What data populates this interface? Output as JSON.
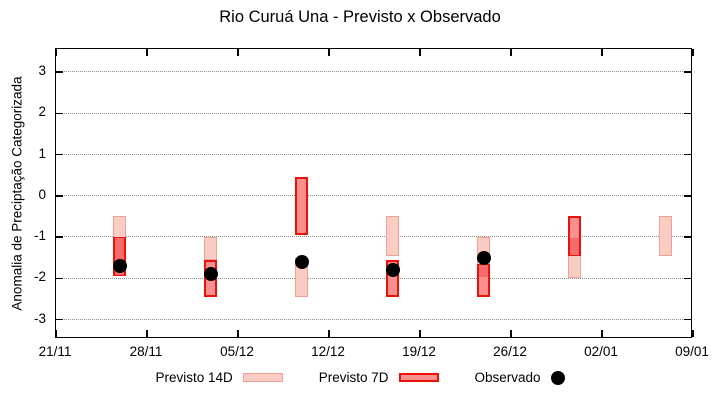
{
  "title": "Rio Curuá Una - Previsto x Observado",
  "y_axis": {
    "label": "Anomalia de Preciptação Categorizada",
    "ticks": [
      3,
      2,
      1,
      0,
      -1,
      -2,
      -3
    ]
  },
  "x_axis": {
    "ticks": [
      "21/11",
      "28/11",
      "05/12",
      "12/12",
      "19/12",
      "26/12",
      "02/01",
      "09/01"
    ]
  },
  "legend": {
    "previsto14_label": "Previsto 14D",
    "previsto7_label": "Previsto 7D",
    "observado_label": "Observado"
  },
  "colors": {
    "previsto_14d_fill": "#f9cdc4",
    "previsto_14d_border": "#f2a097",
    "previsto_7d_fill": "#f98f8f",
    "previsto_7d_border": "#e8140a",
    "overlap_fill": "#f56b6b",
    "observado": "#000000",
    "grid": "#909090",
    "axis": "#000000"
  },
  "chart_data": {
    "type": "range-bar",
    "title": "Rio Curuá Una - Previsto x Observado",
    "ylabel": "Anomalia de Preciptação Categorizada",
    "ylim": [
      -3.47,
      3.56
    ],
    "x_axis_weeks": [
      "21/11",
      "28/11",
      "05/12",
      "12/12",
      "19/12",
      "26/12",
      "02/01",
      "09/01"
    ],
    "grid": "horizontal-dotted",
    "legend_position": "bottom-center",
    "series_names": [
      "Previsto 14D",
      "Previsto 7D",
      "Observado"
    ],
    "bars": [
      {
        "x_weeks": 0.7,
        "previsto_14d": [
          -0.5,
          -1.95
        ],
        "previsto_7d": [
          -1.0,
          -1.95
        ],
        "observado": -1.7
      },
      {
        "x_weeks": 1.7,
        "previsto_14d": [
          -1.0,
          -1.55
        ],
        "previsto_7d": [
          -1.55,
          -2.45
        ],
        "observado": -1.9
      },
      {
        "x_weeks": 2.7,
        "previsto_14d": [
          -1.5,
          -2.45
        ],
        "previsto_7d": [
          0.45,
          -0.95
        ],
        "observado": -1.6
      },
      {
        "x_weeks": 3.7,
        "previsto_14d": [
          -0.5,
          -1.45
        ],
        "previsto_7d": [
          -1.55,
          -2.45
        ],
        "observado": -1.8
      },
      {
        "x_weeks": 4.7,
        "previsto_14d": [
          -1.0,
          -2.0
        ],
        "previsto_7d": [
          -1.65,
          -2.45
        ],
        "observado": -1.5
      },
      {
        "x_weeks": 5.7,
        "previsto_14d": [
          -1.0,
          -2.0
        ],
        "previsto_7d": [
          -0.5,
          -1.45
        ],
        "observado": null
      },
      {
        "x_weeks": 6.7,
        "previsto_14d": [
          -0.5,
          -1.45
        ],
        "previsto_7d": null,
        "observado": null
      }
    ]
  }
}
